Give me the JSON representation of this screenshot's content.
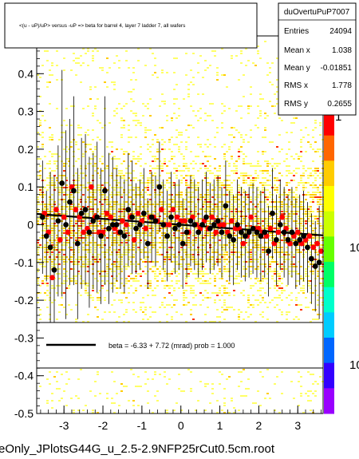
{
  "title": "<(u - uP)/uP> versus -uP => beta for barrel 4, layer 7 ladder 7, all wafers",
  "stats": {
    "name": "duOvertuPuP7007",
    "rows": [
      {
        "label": "Entries",
        "value": "24094"
      },
      {
        "label": "Mean x",
        "value": "1.038"
      },
      {
        "label": "Mean y",
        "value": "-0.01851"
      },
      {
        "label": "RMS x",
        "value": "1.778"
      },
      {
        "label": "RMS y",
        "value": "0.2655"
      }
    ]
  },
  "fit_legend": "beta =   -6.33 +   7.72 (mrad) prob = 1.000",
  "footer": "eOnly_JPlotsG44G_u_2.5-2.9NFP25rCut0.5cm.root",
  "colorbar_labels": [
    "1",
    "10",
    "10"
  ],
  "colors": {
    "black_marker": "#000000",
    "red_marker": "#ff0000",
    "fit_line": "#000000",
    "heat_low": "#ffff66",
    "heat_mid": "#ffcc00",
    "heat_high": "#ff3300"
  },
  "chart_data": {
    "type": "scatter",
    "xlim": [
      -3.7,
      3.65
    ],
    "ylim": [
      -0.5,
      0.5
    ],
    "xticks": [
      -3,
      -2,
      -1,
      0,
      1,
      2,
      3
    ],
    "yticks": [
      -0.5,
      -0.4,
      -0.3,
      -0.2,
      -0.1,
      0,
      0.1,
      0.2,
      0.3,
      0.4
    ],
    "ytick_labels": [
      "-0.5",
      "-0.4",
      "-0.3",
      "-0.2",
      "-0.1",
      "0",
      "0.1",
      "0.2",
      "0.3",
      "0.4"
    ],
    "fit": {
      "slope": -0.00772,
      "intercept": 0.0
    },
    "series": [
      {
        "marker": "circle-black",
        "points": [
          [
            -3.55,
            0.02,
            0.15
          ],
          [
            -3.45,
            -0.03,
            0.12
          ],
          [
            -3.35,
            -0.06,
            0.2
          ],
          [
            -3.25,
            -0.12,
            0.25
          ],
          [
            -3.15,
            0.01,
            0.2
          ],
          [
            -3.05,
            0.11,
            0.3
          ],
          [
            -2.95,
            0.0,
            0.25
          ],
          [
            -2.85,
            0.06,
            0.22
          ],
          [
            -2.75,
            0.09,
            0.25
          ],
          [
            -2.65,
            -0.05,
            0.2
          ],
          [
            -2.55,
            0.03,
            0.2
          ],
          [
            -2.45,
            0.04,
            0.2
          ],
          [
            -2.35,
            -0.02,
            0.2
          ],
          [
            -2.25,
            0.01,
            0.18
          ],
          [
            -2.15,
            0.02,
            0.2
          ],
          [
            -2.05,
            -0.03,
            0.18
          ],
          [
            -1.95,
            0.09,
            0.25
          ],
          [
            -1.85,
            -0.01,
            0.2
          ],
          [
            -1.75,
            0.0,
            0.18
          ],
          [
            -1.65,
            0.0,
            0.15
          ],
          [
            -1.55,
            -0.02,
            0.15
          ],
          [
            -1.45,
            -0.03,
            0.15
          ],
          [
            -1.35,
            0.04,
            0.15
          ],
          [
            -1.25,
            0.02,
            0.15
          ],
          [
            -1.15,
            -0.01,
            0.12
          ],
          [
            -1.05,
            0.0,
            0.12
          ],
          [
            -0.95,
            0.03,
            0.12
          ],
          [
            -0.85,
            -0.05,
            0.12
          ],
          [
            -0.75,
            0.02,
            0.12
          ],
          [
            -0.65,
            0.01,
            0.12
          ],
          [
            -0.55,
            0.1,
            0.12
          ],
          [
            -0.45,
            0.0,
            0.12
          ],
          [
            -0.35,
            -0.03,
            0.12
          ],
          [
            -0.25,
            0.02,
            0.12
          ],
          [
            -0.15,
            -0.01,
            0.12
          ],
          [
            -0.05,
            0.0,
            0.12
          ],
          [
            0.05,
            -0.05,
            0.12
          ],
          [
            0.15,
            -0.02,
            0.12
          ],
          [
            0.25,
            0.01,
            0.12
          ],
          [
            0.35,
            0.0,
            0.12
          ],
          [
            0.45,
            -0.02,
            0.12
          ],
          [
            0.55,
            0.0,
            0.12
          ],
          [
            0.65,
            0.02,
            0.12
          ],
          [
            0.75,
            -0.01,
            0.12
          ],
          [
            0.85,
            0.0,
            0.12
          ],
          [
            0.95,
            0.01,
            0.12
          ],
          [
            1.05,
            -0.02,
            0.12
          ],
          [
            1.15,
            0.05,
            0.12
          ],
          [
            1.25,
            -0.03,
            0.12
          ],
          [
            1.35,
            -0.04,
            0.12
          ],
          [
            1.45,
            0.0,
            0.12
          ],
          [
            1.55,
            -0.02,
            0.12
          ],
          [
            1.65,
            -0.03,
            0.12
          ],
          [
            1.75,
            -0.02,
            0.12
          ],
          [
            1.85,
            -0.01,
            0.12
          ],
          [
            1.95,
            -0.02,
            0.12
          ],
          [
            2.05,
            -0.03,
            0.12
          ],
          [
            2.15,
            -0.02,
            0.12
          ],
          [
            2.25,
            -0.07,
            0.12
          ],
          [
            2.35,
            0.03,
            0.12
          ],
          [
            2.45,
            -0.04,
            0.12
          ],
          [
            2.55,
            0.0,
            0.12
          ],
          [
            2.65,
            -0.02,
            0.12
          ],
          [
            2.75,
            -0.04,
            0.12
          ],
          [
            2.85,
            -0.02,
            0.12
          ],
          [
            2.95,
            -0.05,
            0.12
          ],
          [
            3.05,
            -0.04,
            0.12
          ],
          [
            3.15,
            -0.03,
            0.12
          ],
          [
            3.25,
            -0.06,
            0.12
          ],
          [
            3.35,
            -0.09,
            0.12
          ],
          [
            3.45,
            -0.11,
            0.12
          ],
          [
            3.55,
            -0.1,
            0.15
          ]
        ]
      },
      {
        "marker": "circle-red",
        "points": [
          [
            -3.5,
            0.03
          ],
          [
            -3.4,
            -0.02
          ],
          [
            -3.3,
            -0.14
          ],
          [
            -3.2,
            0.04
          ],
          [
            -3.1,
            -0.04
          ],
          [
            -3.0,
            0.02
          ],
          [
            -2.9,
            -0.02
          ],
          [
            -2.8,
            0.1
          ],
          [
            -2.7,
            0.04
          ],
          [
            -2.6,
            0.02
          ],
          [
            -2.5,
            -0.02
          ],
          [
            -2.4,
            -0.01
          ],
          [
            -2.3,
            0.1
          ],
          [
            -2.2,
            0.02
          ],
          [
            -2.1,
            -0.02
          ],
          [
            -2.0,
            -0.02
          ],
          [
            -1.9,
            0.03
          ],
          [
            -1.8,
            0.02
          ],
          [
            -1.7,
            -0.01
          ],
          [
            -1.6,
            -0.02
          ],
          [
            -1.5,
            0.01
          ],
          [
            -1.4,
            0.0
          ],
          [
            -1.3,
            0.02
          ],
          [
            -1.2,
            -0.04
          ],
          [
            -1.1,
            0.03
          ],
          [
            -1.0,
            0.01
          ],
          [
            -0.9,
            -0.01
          ],
          [
            -0.8,
            0.02
          ],
          [
            -0.7,
            0.02
          ],
          [
            -0.6,
            0.01
          ],
          [
            -0.5,
            0.04
          ],
          [
            -0.4,
            0.0
          ],
          [
            -0.3,
            0.0
          ],
          [
            -0.2,
            0.04
          ],
          [
            -0.1,
            0.02
          ],
          [
            0.0,
            0.01
          ],
          [
            0.1,
            0.01
          ],
          [
            0.2,
            -0.02
          ],
          [
            0.3,
            0.02
          ],
          [
            0.4,
            0.0
          ],
          [
            0.5,
            -0.01
          ],
          [
            0.6,
            0.01
          ],
          [
            0.7,
            -0.01
          ],
          [
            0.8,
            0.02
          ],
          [
            0.9,
            -0.02
          ],
          [
            1.0,
            0.0
          ],
          [
            1.1,
            0.0
          ],
          [
            1.2,
            -0.02
          ],
          [
            1.3,
            0.01
          ],
          [
            1.4,
            -0.01
          ],
          [
            1.5,
            -0.01
          ],
          [
            1.6,
            -0.05
          ],
          [
            1.7,
            -0.03
          ],
          [
            1.8,
            0.02
          ],
          [
            1.9,
            -0.01
          ],
          [
            2.0,
            -0.01
          ],
          [
            2.1,
            -0.02
          ],
          [
            2.2,
            -0.03
          ],
          [
            2.3,
            -0.01
          ],
          [
            2.4,
            -0.05
          ],
          [
            2.5,
            -0.02
          ],
          [
            2.6,
            0.02
          ],
          [
            2.7,
            -0.01
          ],
          [
            2.8,
            -0.05
          ],
          [
            2.9,
            -0.03
          ],
          [
            3.0,
            -0.02
          ],
          [
            3.1,
            -0.05
          ],
          [
            3.2,
            -0.04
          ],
          [
            3.3,
            -0.03
          ],
          [
            3.4,
            -0.06
          ],
          [
            3.5,
            -0.05
          ],
          [
            3.6,
            -0.07
          ]
        ]
      }
    ]
  }
}
